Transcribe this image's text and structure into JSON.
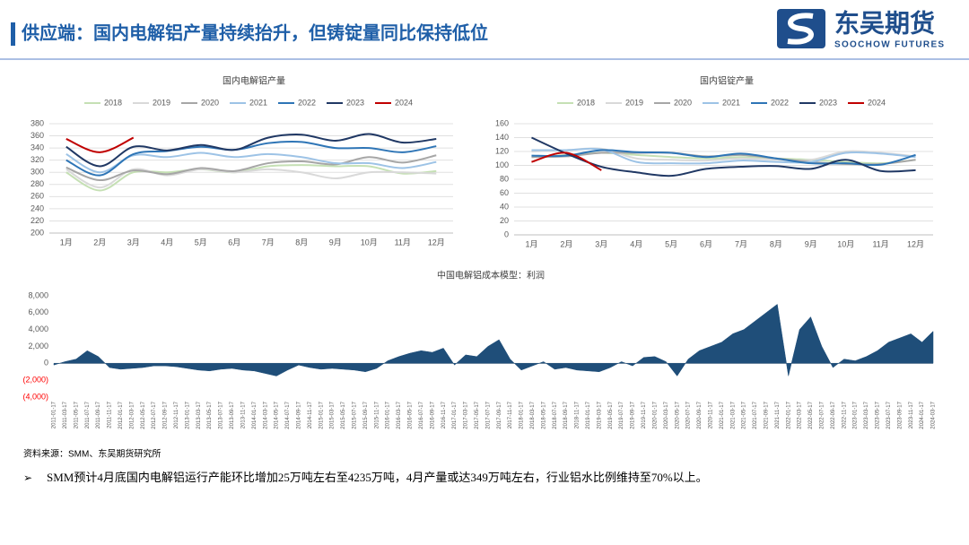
{
  "header": {
    "title": "供应端：国内电解铝产量持续抬升，但铸锭量同比保持低位",
    "logo_cn": "东吴期货",
    "logo_en": "SOOCHOW FUTURES"
  },
  "footer": {
    "source": "资料来源：SMM、东吴期货研究所",
    "bullet": "➢",
    "note": "SMM预计4月底国内电解铝运行产能环比增加25万吨左右至4235万吨，4月产量或达349万吨左右，行业铝水比例维持至70%以上。"
  },
  "chart_data": [
    {
      "type": "line",
      "title": "国内电解铝产量",
      "categories": [
        "1月",
        "2月",
        "3月",
        "4月",
        "5月",
        "6月",
        "7月",
        "8月",
        "9月",
        "10月",
        "11月",
        "12月"
      ],
      "ylim": [
        200,
        380
      ],
      "yticks": [
        200,
        220,
        240,
        260,
        280,
        300,
        320,
        340,
        360,
        380
      ],
      "grid": true,
      "legend": "top",
      "series": [
        {
          "name": "2018",
          "color": "#c5e0b4",
          "values": [
            300,
            270,
            300,
            300,
            305,
            300,
            310,
            312,
            310,
            310,
            298,
            302
          ]
        },
        {
          "name": "2019",
          "color": "#d9d9d9",
          "values": [
            305,
            275,
            305,
            295,
            305,
            300,
            305,
            300,
            290,
            300,
            300,
            298
          ]
        },
        {
          "name": "2020",
          "color": "#a6a6a6",
          "values": [
            308,
            287,
            303,
            297,
            307,
            302,
            315,
            318,
            313,
            325,
            316,
            328
          ]
        },
        {
          "name": "2021",
          "color": "#9dc3e6",
          "values": [
            330,
            300,
            328,
            325,
            332,
            325,
            330,
            325,
            315,
            315,
            307,
            317
          ]
        },
        {
          "name": "2022",
          "color": "#2e75b6",
          "values": [
            320,
            295,
            330,
            335,
            342,
            337,
            348,
            350,
            340,
            340,
            333,
            343
          ]
        },
        {
          "name": "2023",
          "color": "#203864",
          "values": [
            342,
            310,
            342,
            336,
            345,
            337,
            357,
            362,
            352,
            363,
            349,
            355
          ]
        },
        {
          "name": "2024",
          "color": "#c00000",
          "values": [
            355,
            333,
            357,
            null,
            null,
            null,
            null,
            null,
            null,
            null,
            null,
            null
          ]
        }
      ]
    },
    {
      "type": "line",
      "title": "国内铝锭产量",
      "categories": [
        "1月",
        "2月",
        "3月",
        "4月",
        "5月",
        "6月",
        "7月",
        "8月",
        "9月",
        "10月",
        "11月",
        "12月"
      ],
      "ylim": [
        0,
        160
      ],
      "yticks": [
        0,
        20,
        40,
        60,
        80,
        100,
        120,
        140,
        160
      ],
      "grid": true,
      "legend": "top",
      "series": [
        {
          "name": "2018",
          "color": "#c5e0b4",
          "values": [
            112,
            115,
            118,
            115,
            112,
            110,
            112,
            110,
            108,
            105,
            103,
            108
          ]
        },
        {
          "name": "2019",
          "color": "#d9d9d9",
          "values": [
            120,
            122,
            124,
            110,
            108,
            107,
            110,
            108,
            108,
            120,
            118,
            113
          ]
        },
        {
          "name": "2020",
          "color": "#a6a6a6",
          "values": [
            112,
            113,
            118,
            118,
            118,
            113,
            115,
            110,
            105,
            102,
            102,
            108
          ]
        },
        {
          "name": "2021",
          "color": "#9dc3e6",
          "values": [
            122,
            122,
            123,
            105,
            103,
            103,
            107,
            105,
            105,
            118,
            117,
            112
          ]
        },
        {
          "name": "2022",
          "color": "#2e75b6",
          "values": [
            114,
            114,
            122,
            119,
            118,
            112,
            117,
            110,
            103,
            103,
            101,
            115
          ]
        },
        {
          "name": "2023",
          "color": "#203864",
          "values": [
            140,
            117,
            98,
            90,
            85,
            95,
            98,
            99,
            95,
            108,
            92,
            93
          ]
        },
        {
          "name": "2024",
          "color": "#c00000",
          "values": [
            105,
            118,
            93,
            null,
            null,
            null,
            null,
            null,
            null,
            null,
            null,
            null
          ]
        }
      ]
    },
    {
      "type": "area",
      "title": "中国电解铝成本模型：利润",
      "color": "#1f4e79",
      "negative_tick_color": "#ff0000",
      "ylim": [
        -4000,
        8000
      ],
      "yticks": [
        {
          "value": -4000,
          "label": "(4,000)"
        },
        {
          "value": -2000,
          "label": "(2,000)"
        },
        0,
        {
          "value": 2000,
          "label": "2,000"
        },
        {
          "value": 4000,
          "label": "4,000"
        },
        {
          "value": 6000,
          "label": "6,000"
        },
        {
          "value": 8000,
          "label": "8,000"
        }
      ],
      "categories": [
        "2011-01-17",
        "2011-03-17",
        "2011-05-17",
        "2011-07-17",
        "2011-09-17",
        "2011-11-17",
        "2012-01-17",
        "2012-03-17",
        "2012-05-17",
        "2012-07-17",
        "2012-09-17",
        "2012-11-17",
        "2013-01-17",
        "2013-03-17",
        "2013-05-17",
        "2013-07-17",
        "2013-09-17",
        "2013-11-17",
        "2014-01-17",
        "2014-03-17",
        "2014-05-17",
        "2014-07-17",
        "2014-09-17",
        "2014-11-17",
        "2015-01-17",
        "2015-03-17",
        "2015-05-17",
        "2015-07-17",
        "2015-09-17",
        "2015-11-17",
        "2016-01-17",
        "2016-03-17",
        "2016-05-17",
        "2016-07-17",
        "2016-09-17",
        "2016-11-17",
        "2017-01-17",
        "2017-03-17",
        "2017-05-17",
        "2017-07-17",
        "2017-09-17",
        "2017-11-17",
        "2018-01-17",
        "2018-03-17",
        "2018-05-17",
        "2018-07-17",
        "2018-09-17",
        "2018-11-17",
        "2019-01-17",
        "2019-03-17",
        "2019-05-17",
        "2019-07-17",
        "2019-09-17",
        "2019-11-17",
        "2020-01-17",
        "2020-03-17",
        "2020-05-17",
        "2020-07-17",
        "2020-09-17",
        "2020-11-17",
        "2021-01-17",
        "2021-03-17",
        "2021-05-17",
        "2021-07-17",
        "2021-09-17",
        "2021-11-17",
        "2022-01-17",
        "2022-03-17",
        "2022-05-17",
        "2022-07-17",
        "2022-09-17",
        "2022-11-17",
        "2023-01-17",
        "2023-03-17",
        "2023-05-17",
        "2023-07-17",
        "2023-09-17",
        "2023-11-17",
        "2024-01-17",
        "2024-03-17"
      ],
      "values": [
        -200,
        200,
        500,
        1500,
        800,
        -500,
        -700,
        -600,
        -500,
        -300,
        -300,
        -400,
        -600,
        -800,
        -900,
        -700,
        -600,
        -800,
        -900,
        -1200,
        -1500,
        -800,
        -200,
        -500,
        -700,
        -600,
        -700,
        -800,
        -1000,
        -600,
        300,
        800,
        1200,
        1500,
        1300,
        1800,
        -200,
        1000,
        800,
        2000,
        2800,
        500,
        -800,
        -300,
        200,
        -700,
        -500,
        -800,
        -900,
        -1000,
        -500,
        200,
        -300,
        700,
        800,
        200,
        -1500,
        500,
        1500,
        2000,
        2500,
        3500,
        4000,
        5000,
        6000,
        7000,
        -1500,
        4000,
        5500,
        2000,
        -500,
        500,
        300,
        800,
        1500,
        2500,
        3000,
        3500,
        2500,
        3800
      ]
    }
  ]
}
